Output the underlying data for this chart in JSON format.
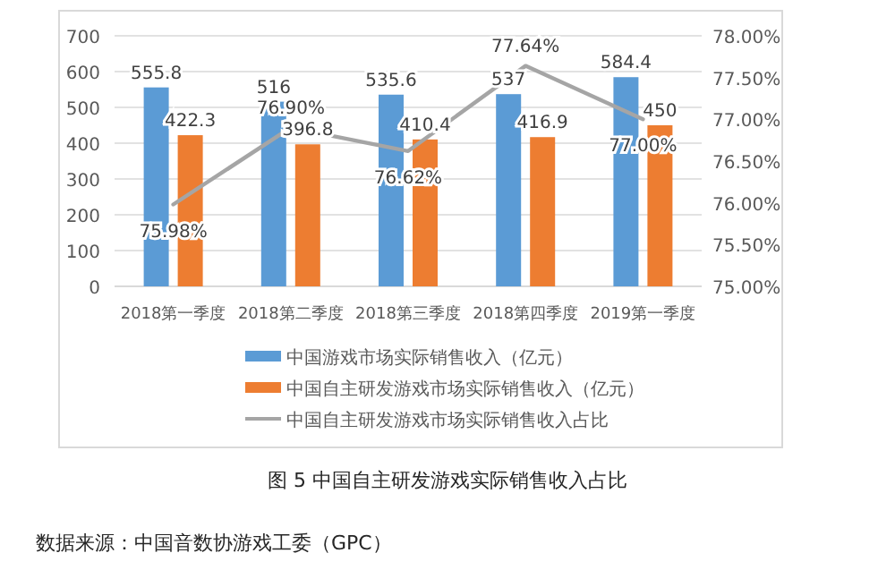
{
  "chart_data": {
    "type": "bar",
    "title": "图 5  中国自主研发游戏实际销售收入占比",
    "categories": [
      "2018第一季度",
      "2018第二季度",
      "2018第三季度",
      "2018第四季度",
      "2019第一季度"
    ],
    "series": [
      {
        "name": "中国游戏市场实际销售收入（亿元）",
        "color": "#5b9bd5",
        "values": [
          555.8,
          516,
          535.6,
          537,
          584.4
        ],
        "value_labels": [
          "555.8",
          "516",
          "535.6",
          "537",
          "584.4"
        ]
      },
      {
        "name": "中国自主研发游戏市场实际销售收入（亿元）",
        "color": "#ed7d31",
        "values": [
          422.3,
          396.8,
          410.4,
          416.9,
          450
        ],
        "value_labels": [
          "422.3",
          "396.8",
          "410.4",
          "416.9",
          "450"
        ]
      },
      {
        "name": "中国自主研发游戏市场实际销售收入占比",
        "type": "line",
        "axis": "y2",
        "color": "#a5a5a5",
        "values": [
          75.98,
          76.9,
          76.62,
          77.64,
          77.0
        ],
        "value_labels": [
          "75.98%",
          "76.90%",
          "76.62%",
          "77.64%",
          "77.00%"
        ]
      }
    ],
    "ylim": [
      0,
      700
    ],
    "yticks": [
      0,
      100,
      200,
      300,
      400,
      500,
      600,
      700
    ],
    "y2lim": [
      75,
      78
    ],
    "y2ticks": [
      {
        "value": 75,
        "label": "75.00%"
      },
      {
        "value": 75.5,
        "label": "75.50%"
      },
      {
        "value": 76,
        "label": "76.00%"
      },
      {
        "value": 76.5,
        "label": "76.50%"
      },
      {
        "value": 77,
        "label": "77.00%"
      },
      {
        "value": 77.5,
        "label": "77.50%"
      },
      {
        "value": 78,
        "label": "78.00%"
      }
    ],
    "grid": "y",
    "legend": "bottom",
    "marker": "none",
    "line_style": "solid",
    "annotations": [
      "数据来源：中国音数协游戏工委（GPC）"
    ]
  }
}
